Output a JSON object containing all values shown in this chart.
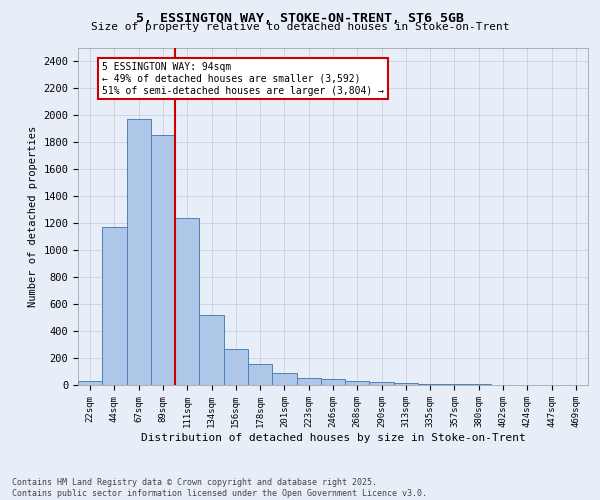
{
  "title1": "5, ESSINGTON WAY, STOKE-ON-TRENT, ST6 5GB",
  "title2": "Size of property relative to detached houses in Stoke-on-Trent",
  "xlabel": "Distribution of detached houses by size in Stoke-on-Trent",
  "ylabel": "Number of detached properties",
  "categories": [
    "22sqm",
    "44sqm",
    "67sqm",
    "89sqm",
    "111sqm",
    "134sqm",
    "156sqm",
    "178sqm",
    "201sqm",
    "223sqm",
    "246sqm",
    "268sqm",
    "290sqm",
    "313sqm",
    "335sqm",
    "357sqm",
    "380sqm",
    "402sqm",
    "424sqm",
    "447sqm",
    "469sqm"
  ],
  "values": [
    28,
    1170,
    1970,
    1850,
    1240,
    515,
    270,
    155,
    90,
    50,
    42,
    30,
    20,
    15,
    8,
    5,
    4,
    3,
    2,
    2,
    1
  ],
  "bar_color": "#aec6e8",
  "bar_edge_color": "#5080b8",
  "grid_color": "#c8d0e0",
  "background_color": "#e8eef8",
  "red_line_index": 3,
  "annotation_text": "5 ESSINGTON WAY: 94sqm\n← 49% of detached houses are smaller (3,592)\n51% of semi-detached houses are larger (3,804) →",
  "annotation_box_color": "#ffffff",
  "annotation_edge_color": "#cc0000",
  "ylim": [
    0,
    2500
  ],
  "yticks": [
    0,
    200,
    400,
    600,
    800,
    1000,
    1200,
    1400,
    1600,
    1800,
    2000,
    2200,
    2400
  ],
  "footnote": "Contains HM Land Registry data © Crown copyright and database right 2025.\nContains public sector information licensed under the Open Government Licence v3.0."
}
